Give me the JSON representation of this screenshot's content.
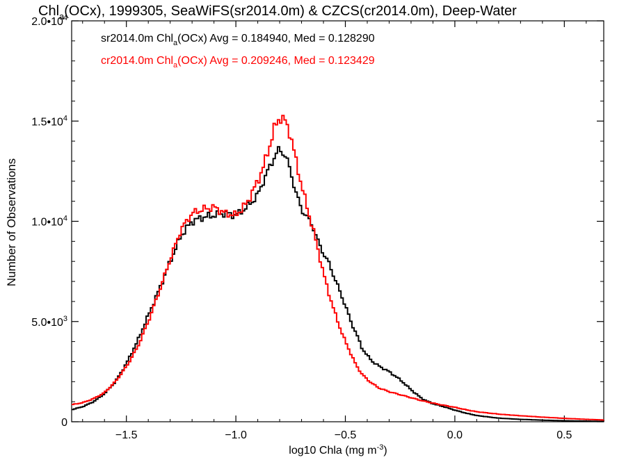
{
  "chart_data": {
    "type": "line",
    "title": {
      "p1": "Chl",
      "sub": "a",
      "p2": "(OCx), 1999305, SeaWiFS(sr2014.0m) & CZCS(cr2014.0m), Deep-Water"
    },
    "xlabel": {
      "main": "log10 Chla (mg m",
      "sup": "-3",
      "end": ")"
    },
    "ylabel": "Number of Observations",
    "xlim": [
      -1.75,
      0.68
    ],
    "ylim": [
      0,
      20000
    ],
    "xticks": [
      {
        "v": -1.5,
        "label": "−1.5"
      },
      {
        "v": -1.0,
        "label": "−1.0"
      },
      {
        "v": -0.5,
        "label": "−0.5"
      },
      {
        "v": 0.0,
        "label": "0.0"
      },
      {
        "v": 0.5,
        "label": "0.5"
      }
    ],
    "yticks": [
      {
        "v": 0,
        "m": "0",
        "e": ""
      },
      {
        "v": 5000,
        "m": "5.0•10",
        "e": "3"
      },
      {
        "v": 10000,
        "m": "1.0•10",
        "e": "4"
      },
      {
        "v": 15000,
        "m": "1.5•10",
        "e": "4"
      },
      {
        "v": 20000,
        "m": "2.0•10",
        "e": "4"
      }
    ],
    "annotations": [
      {
        "p1": "sr2014.0m Chl",
        "sub": "a",
        "p2": "(OCx) Avg = 0.184940, Med = 0.128290",
        "color": "#000000"
      },
      {
        "p1": "cr2014.0m Chl",
        "sub": "a",
        "p2": "(OCx) Avg = 0.209246, Med = 0.123429",
        "color": "#ff0000"
      }
    ],
    "series": [
      {
        "color": "#000000",
        "points": [
          [
            -1.75,
            600
          ],
          [
            -1.7,
            750
          ],
          [
            -1.65,
            1000
          ],
          [
            -1.6,
            1400
          ],
          [
            -1.55,
            2000
          ],
          [
            -1.5,
            2900
          ],
          [
            -1.45,
            4000
          ],
          [
            -1.4,
            5300
          ],
          [
            -1.35,
            6600
          ],
          [
            -1.3,
            8000
          ],
          [
            -1.25,
            9300
          ],
          [
            -1.2,
            10000
          ],
          [
            -1.15,
            10200
          ],
          [
            -1.1,
            10300
          ],
          [
            -1.05,
            10400
          ],
          [
            -1.0,
            10300
          ],
          [
            -0.95,
            10700
          ],
          [
            -0.9,
            11300
          ],
          [
            -0.875,
            12000
          ],
          [
            -0.85,
            12600
          ],
          [
            -0.825,
            13200
          ],
          [
            -0.8,
            13600
          ],
          [
            -0.775,
            13300
          ],
          [
            -0.75,
            12500
          ],
          [
            -0.725,
            11400
          ],
          [
            -0.7,
            10600
          ],
          [
            -0.675,
            10200
          ],
          [
            -0.65,
            9800
          ],
          [
            -0.625,
            9000
          ],
          [
            -0.6,
            8400
          ],
          [
            -0.575,
            7900
          ],
          [
            -0.55,
            7200
          ],
          [
            -0.525,
            6500
          ],
          [
            -0.5,
            5800
          ],
          [
            -0.475,
            5000
          ],
          [
            -0.45,
            4400
          ],
          [
            -0.425,
            3700
          ],
          [
            -0.4,
            3300
          ],
          [
            -0.375,
            3000
          ],
          [
            -0.35,
            2800
          ],
          [
            -0.325,
            2650
          ],
          [
            -0.3,
            2500
          ],
          [
            -0.25,
            2100
          ],
          [
            -0.2,
            1600
          ],
          [
            -0.15,
            1150
          ],
          [
            -0.1,
            900
          ],
          [
            -0.05,
            750
          ],
          [
            0.0,
            580
          ],
          [
            0.05,
            430
          ],
          [
            0.1,
            310
          ],
          [
            0.2,
            180
          ],
          [
            0.3,
            120
          ],
          [
            0.4,
            80
          ],
          [
            0.5,
            50
          ],
          [
            0.6,
            30
          ],
          [
            0.68,
            20
          ]
        ]
      },
      {
        "color": "#ff0000",
        "points": [
          [
            -1.75,
            850
          ],
          [
            -1.7,
            950
          ],
          [
            -1.65,
            1150
          ],
          [
            -1.6,
            1450
          ],
          [
            -1.55,
            2000
          ],
          [
            -1.5,
            2750
          ],
          [
            -1.45,
            3700
          ],
          [
            -1.4,
            5000
          ],
          [
            -1.35,
            6500
          ],
          [
            -1.3,
            8100
          ],
          [
            -1.25,
            9600
          ],
          [
            -1.2,
            10400
          ],
          [
            -1.15,
            10600
          ],
          [
            -1.1,
            10700
          ],
          [
            -1.05,
            10400
          ],
          [
            -1.0,
            10300
          ],
          [
            -0.95,
            10900
          ],
          [
            -0.9,
            12000
          ],
          [
            -0.875,
            12700
          ],
          [
            -0.85,
            13600
          ],
          [
            -0.825,
            14600
          ],
          [
            -0.8,
            15200
          ],
          [
            -0.775,
            15000
          ],
          [
            -0.75,
            14300
          ],
          [
            -0.725,
            13000
          ],
          [
            -0.7,
            11800
          ],
          [
            -0.675,
            10700
          ],
          [
            -0.65,
            9700
          ],
          [
            -0.625,
            8600
          ],
          [
            -0.6,
            7400
          ],
          [
            -0.575,
            6400
          ],
          [
            -0.55,
            5500
          ],
          [
            -0.525,
            4700
          ],
          [
            -0.5,
            4000
          ],
          [
            -0.475,
            3400
          ],
          [
            -0.45,
            2800
          ],
          [
            -0.425,
            2400
          ],
          [
            -0.4,
            2100
          ],
          [
            -0.35,
            1700
          ],
          [
            -0.3,
            1500
          ],
          [
            -0.25,
            1350
          ],
          [
            -0.2,
            1200
          ],
          [
            -0.15,
            1050
          ],
          [
            -0.1,
            930
          ],
          [
            -0.05,
            820
          ],
          [
            0.0,
            720
          ],
          [
            0.05,
            600
          ],
          [
            0.1,
            500
          ],
          [
            0.2,
            380
          ],
          [
            0.3,
            300
          ],
          [
            0.4,
            230
          ],
          [
            0.5,
            170
          ],
          [
            0.6,
            120
          ],
          [
            0.68,
            90
          ]
        ]
      }
    ]
  }
}
